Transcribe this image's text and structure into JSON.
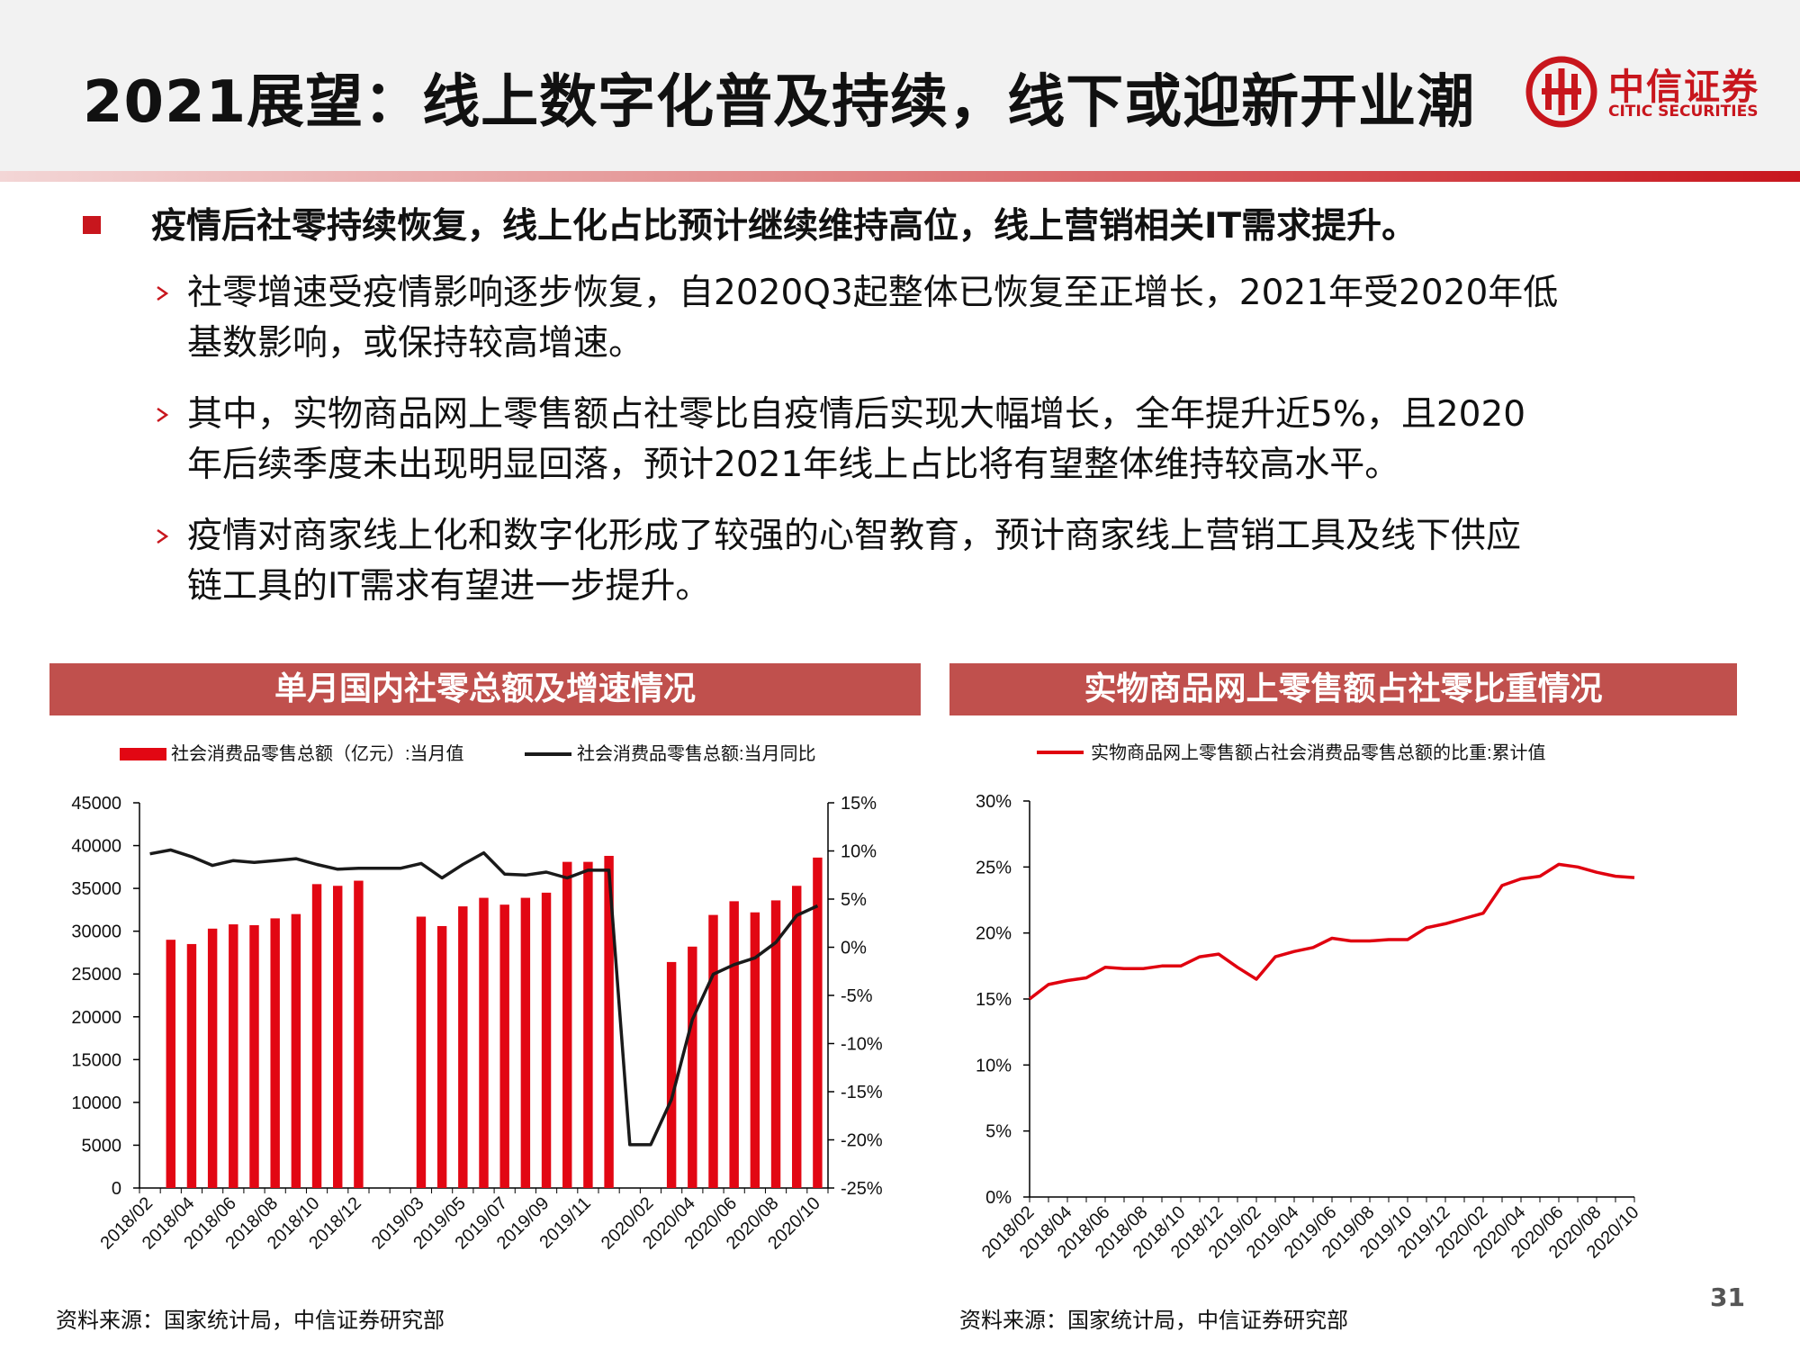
{
  "header": {
    "title": "2021展望：线上数字化普及持续，线下或迎新开业潮",
    "logo": {
      "cn": "中信证券",
      "en": "CITIC SECURITIES",
      "icon": "citic-logo-icon",
      "brand_color": "#c8161d"
    }
  },
  "bullets": {
    "main": "疫情后社零持续恢复，线上化占比预计继续维持高位，线上营销相关IT需求提升。",
    "subs": [
      {
        "line1": "社零增速受疫情影响逐步恢复，自2020Q3起整体已恢复至正增长，2021年受2020年低",
        "line2": "基数影响，或保持较高增速。"
      },
      {
        "line1": "其中，实物商品网上零售额占社零比自疫情后实现大幅增长，全年提升近5%，且2020",
        "line2": "年后续季度未出现明显回落，预计2021年线上占比将有望整体维持较高水平。"
      },
      {
        "line1": "疫情对商家线上化和数字化形成了较强的心智教育，预计商家线上营销工具及线下供应",
        "line2": "链工具的IT需求有望进一步提升。"
      }
    ]
  },
  "panels": {
    "left": {
      "title": "单月国内社零总额及增速情况",
      "source": "资料来源：国家统计局，中信证券研究部"
    },
    "right": {
      "title": "实物商品网上零售额占社零比重情况",
      "source": "资料来源：国家统计局，中信证券研究部"
    }
  },
  "page_number": "31",
  "colors": {
    "red": "#e0000f",
    "bar_red": "#e20713",
    "panel_bar": "#c0504d",
    "line_black": "#1a1a1a"
  },
  "chart_data": [
    {
      "type": "bar",
      "categories": [
        "2018/02",
        "2018/03",
        "2018/04",
        "2018/05",
        "2018/06",
        "2018/07",
        "2018/08",
        "2018/09",
        "2018/10",
        "2018/11",
        "2018/12",
        "2019/01",
        "2019/02",
        "2019/03",
        "2019/04",
        "2019/05",
        "2019/06",
        "2019/07",
        "2019/08",
        "2019/09",
        "2019/10",
        "2019/11",
        "2019/12",
        "2020/01",
        "2020/02",
        "2020/03",
        "2020/04",
        "2020/05",
        "2020/06",
        "2020/07",
        "2020/08",
        "2020/09",
        "2020/10"
      ],
      "tick_labels": [
        "2018/02",
        "2018/04",
        "2018/06",
        "2018/08",
        "2018/10",
        "2018/12",
        "2019/03",
        "2019/05",
        "2019/07",
        "2019/09",
        "2019/11",
        "2020/02",
        "2020/04",
        "2020/06",
        "2020/08",
        "2020/10"
      ],
      "series": [
        {
          "name": "社会消费品零售总额（亿元）:当月值",
          "kind": "bar",
          "axis": "left",
          "values": [
            null,
            29000,
            28500,
            30300,
            30800,
            30700,
            31500,
            32000,
            35500,
            35300,
            35900,
            null,
            null,
            31700,
            30600,
            32900,
            33900,
            33100,
            33900,
            34500,
            38100,
            38100,
            38800,
            null,
            null,
            26400,
            28200,
            31900,
            33500,
            32200,
            33600,
            35300,
            38600
          ]
        },
        {
          "name": "社会消费品零售总额:当月同比",
          "kind": "line",
          "axis": "right",
          "values": [
            9.7,
            10.1,
            9.4,
            8.5,
            9.0,
            8.8,
            9.0,
            9.2,
            8.6,
            8.1,
            8.2,
            8.2,
            8.2,
            8.7,
            7.2,
            8.6,
            9.8,
            7.6,
            7.5,
            7.8,
            7.2,
            8.0,
            8.0,
            -20.5,
            -20.5,
            -15.8,
            -7.5,
            -2.8,
            -1.8,
            -1.1,
            0.5,
            3.3,
            4.3
          ]
        }
      ],
      "ylim_left": [
        0,
        45000
      ],
      "yticks_left": [
        "45000",
        "40000",
        "35000",
        "30000",
        "25000",
        "20000",
        "15000",
        "10000",
        "5000",
        "0"
      ],
      "ylim_right": [
        -25,
        15
      ],
      "yticks_right": [
        "15%",
        "10%",
        "5%",
        "0%",
        "-5%",
        "-10%",
        "-15%",
        "-20%",
        "-25%"
      ],
      "legend": "top",
      "grid": false
    },
    {
      "type": "line",
      "x": [
        "2018/02",
        "2018/03",
        "2018/04",
        "2018/05",
        "2018/06",
        "2018/07",
        "2018/08",
        "2018/09",
        "2018/10",
        "2018/11",
        "2018/12",
        "2019/01",
        "2019/02",
        "2019/03",
        "2019/04",
        "2019/05",
        "2019/06",
        "2019/07",
        "2019/08",
        "2019/09",
        "2019/10",
        "2019/11",
        "2019/12",
        "2020/01",
        "2020/02",
        "2020/03",
        "2020/04",
        "2020/05",
        "2020/06",
        "2020/07",
        "2020/08",
        "2020/09",
        "2020/10"
      ],
      "tick_labels": [
        "2018/02",
        "2018/04",
        "2018/06",
        "2018/08",
        "2018/10",
        "2018/12",
        "2019/02",
        "2019/04",
        "2019/06",
        "2019/08",
        "2019/10",
        "2019/12",
        "2020/02",
        "2020/04",
        "2020/06",
        "2020/08",
        "2020/10"
      ],
      "series": [
        {
          "name": "实物商品网上零售额占社会消费品零售总额的比重:累计值",
          "values": [
            15.0,
            16.1,
            16.4,
            16.6,
            17.4,
            17.3,
            17.3,
            17.5,
            17.5,
            18.2,
            18.4,
            17.4,
            16.5,
            18.2,
            18.6,
            18.9,
            19.6,
            19.4,
            19.4,
            19.5,
            19.5,
            20.4,
            20.7,
            21.1,
            21.5,
            23.6,
            24.1,
            24.3,
            25.2,
            25.0,
            24.6,
            24.3,
            24.2
          ]
        }
      ],
      "ylim": [
        0,
        30
      ],
      "yticks": [
        "30%",
        "25%",
        "20%",
        "15%",
        "10%",
        "5%",
        "0%"
      ],
      "legend": "top",
      "grid": false
    }
  ]
}
